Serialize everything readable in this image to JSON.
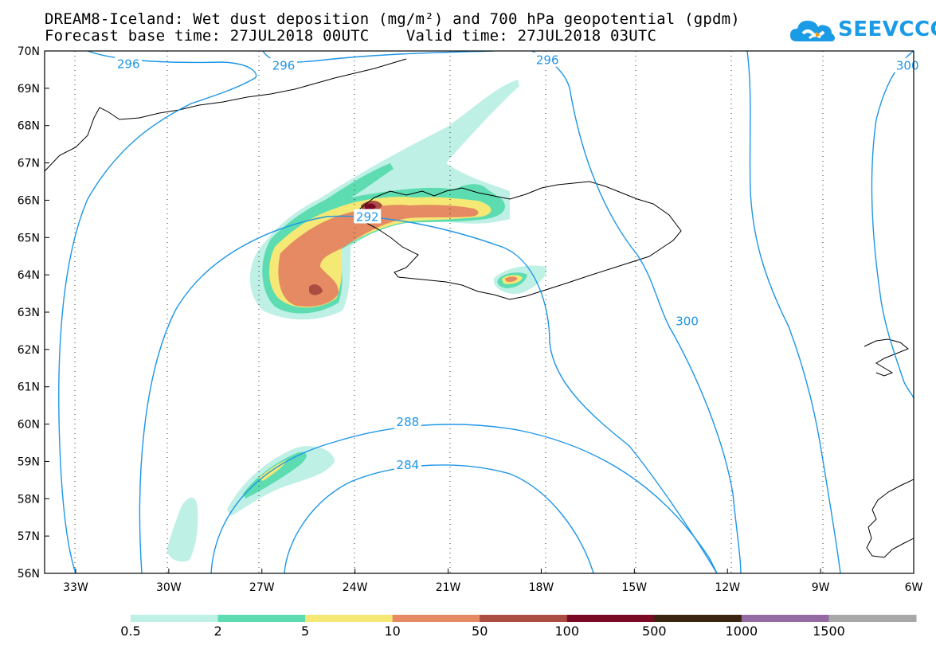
{
  "title_line1": "DREAM8-Iceland: Wet dust deposition (mg/m²) and 700 hPa geopotential (gpdm)",
  "title_line2": "Forecast base time: 27JUL2018 00UTC    Valid time: 27JUL2018 03UTC",
  "logo_text": "SEEVCCC",
  "lat_labels": [
    "70N",
    "69N",
    "68N",
    "67N",
    "66N",
    "65N",
    "64N",
    "63N",
    "62N",
    "61N",
    "60N",
    "59N",
    "58N",
    "57N",
    "56N"
  ],
  "lon_labels": [
    "33W",
    "30W",
    "27W",
    "24W",
    "21W",
    "18W",
    "15W",
    "12W",
    "9W",
    "6W"
  ],
  "contour_labels": [
    {
      "value": "296",
      "lon": -31.3,
      "lat": 69.65
    },
    {
      "value": "296",
      "lon": -26.3,
      "lat": 69.6
    },
    {
      "value": "296",
      "lon": -17.8,
      "lat": 69.75
    },
    {
      "value": "300",
      "lon": -6.2,
      "lat": 69.6
    },
    {
      "value": "292",
      "lon": -23.6,
      "lat": 65.55
    },
    {
      "value": "300",
      "lon": -13.3,
      "lat": 62.75
    },
    {
      "value": "288",
      "lon": -22.3,
      "lat": 60.05
    },
    {
      "value": "284",
      "lon": -22.3,
      "lat": 58.9
    }
  ],
  "legend": {
    "ticks": [
      "0.5",
      "2",
      "5",
      "10",
      "50",
      "100",
      "500",
      "1000",
      "1500"
    ],
    "colors": [
      "#bff0e6",
      "#5cdcb0",
      "#f5e875",
      "#e58a62",
      "#ab4d42",
      "#7a0a23",
      "#3a2412",
      "#946aa3",
      "#a8a8a8"
    ]
  },
  "colors": {
    "contour": "#1e96e6",
    "coast": "#000000",
    "grid": "#333333"
  }
}
